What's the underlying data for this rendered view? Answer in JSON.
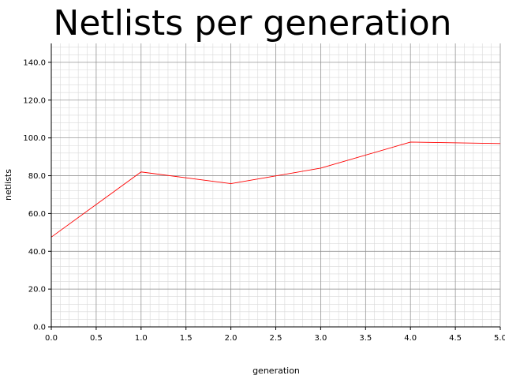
{
  "chart_data": {
    "type": "line",
    "title": "Netlists per generation",
    "xlabel": "generation",
    "ylabel": "netlists",
    "xlim": [
      0,
      5
    ],
    "ylim": [
      0,
      150
    ],
    "grid": true,
    "x_ticks": [
      "0.0",
      "0.5",
      "1.0",
      "1.5",
      "2.0",
      "2.5",
      "3.0",
      "3.5",
      "4.0",
      "4.5",
      "5.0"
    ],
    "y_ticks": [
      "0.0",
      "20.0",
      "40.0",
      "60.0",
      "80.0",
      "100.0",
      "120.0",
      "140.0"
    ],
    "series": [
      {
        "color": "#ff0000",
        "x": [
          0,
          1,
          2,
          3,
          4,
          5
        ],
        "values": [
          47.5,
          82,
          75.8,
          84,
          97.8,
          97
        ]
      }
    ]
  }
}
